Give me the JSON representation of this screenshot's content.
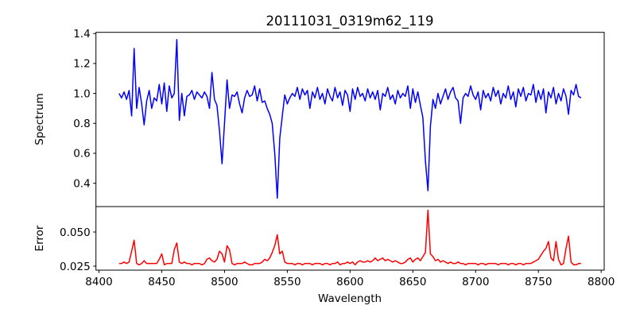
{
  "chart_data": [
    {
      "type": "line",
      "title": "20111031_0319m62_119",
      "xlabel": "",
      "ylabel": "Spectrum",
      "xlim": [
        8397.6,
        8802.4
      ],
      "ylim": [
        0.244,
        1.408
      ],
      "yticks": [
        "0.4",
        "0.6",
        "0.8",
        "1.0",
        "1.2",
        "1.4"
      ],
      "ytick_values": [
        0.4,
        0.6,
        0.8,
        1.0,
        1.2,
        1.4
      ],
      "color": "#0000ff",
      "x_start": 8416,
      "x_step": 2,
      "values": [
        1.0,
        0.97,
        1.01,
        0.96,
        1.02,
        0.85,
        1.3,
        0.9,
        1.04,
        0.93,
        0.79,
        0.95,
        1.02,
        0.9,
        0.97,
        0.95,
        1.06,
        0.93,
        1.07,
        0.88,
        1.05,
        0.97,
        1.0,
        1.36,
        0.82,
        1.0,
        0.85,
        0.98,
        0.99,
        1.02,
        0.96,
        1.01,
        0.99,
        0.97,
        1.01,
        0.98,
        0.9,
        1.14,
        0.96,
        0.92,
        0.75,
        0.53,
        0.8,
        1.09,
        0.9,
        0.99,
        0.98,
        1.01,
        0.93,
        0.87,
        0.97,
        1.02,
        0.98,
        0.99,
        1.05,
        0.95,
        1.03,
        0.94,
        0.95,
        0.9,
        0.86,
        0.8,
        0.6,
        0.3,
        0.7,
        0.85,
        0.99,
        0.93,
        0.97,
        1.0,
        0.98,
        1.04,
        0.96,
        1.03,
        0.99,
        1.02,
        0.9,
        1.01,
        0.97,
        1.04,
        0.96,
        1.0,
        0.93,
        1.03,
        0.98,
        0.95,
        1.04,
        0.97,
        1.01,
        0.92,
        1.02,
        0.99,
        0.88,
        1.03,
        0.96,
        1.04,
        0.98,
        1.0,
        0.95,
        1.03,
        0.97,
        1.01,
        0.96,
        1.02,
        0.89,
        1.0,
        0.98,
        1.04,
        0.96,
        0.99,
        0.93,
        1.02,
        0.97,
        1.0,
        0.98,
        1.05,
        0.9,
        1.03,
        0.94,
        1.01,
        0.92,
        0.84,
        0.55,
        0.35,
        0.78,
        0.96,
        0.9,
        1.0,
        0.93,
        0.98,
        1.03,
        0.96,
        1.01,
        1.04,
        0.97,
        0.95,
        0.8,
        0.97,
        1.0,
        0.98,
        1.05,
        0.99,
        0.96,
        1.01,
        0.89,
        1.02,
        0.97,
        1.0,
        0.95,
        1.04,
        0.98,
        1.02,
        0.93,
        1.0,
        0.97,
        1.05,
        0.96,
        1.01,
        0.91,
        1.03,
        0.98,
        1.04,
        0.95,
        1.0,
        0.99,
        1.06,
        0.94,
        1.02,
        0.96,
        1.03,
        0.87,
        1.01,
        0.97,
        1.04,
        0.93,
        1.0,
        0.95,
        1.03,
        0.98,
        0.86,
        1.02,
        0.99,
        1.06,
        0.98,
        0.97
      ]
    },
    {
      "type": "line",
      "title": "",
      "xlabel": "Wavelength",
      "ylabel": "Error",
      "xlim": [
        8397.6,
        8802.4
      ],
      "ylim": [
        0.0221,
        0.0686
      ],
      "xticks": [
        "8400",
        "8450",
        "8500",
        "8550",
        "8600",
        "8650",
        "8700",
        "8750",
        "8800"
      ],
      "xtick_values": [
        8400,
        8450,
        8500,
        8550,
        8600,
        8650,
        8700,
        8750,
        8800
      ],
      "yticks": [
        "0.025",
        "0.050"
      ],
      "ytick_values": [
        0.025,
        0.05
      ],
      "color": "#ff0000",
      "x_start": 8416,
      "x_step": 2,
      "values": [
        0.027,
        0.027,
        0.028,
        0.027,
        0.028,
        0.036,
        0.044,
        0.027,
        0.026,
        0.027,
        0.029,
        0.027,
        0.027,
        0.027,
        0.027,
        0.027,
        0.03,
        0.034,
        0.026,
        0.027,
        0.027,
        0.027,
        0.037,
        0.042,
        0.028,
        0.027,
        0.028,
        0.027,
        0.027,
        0.026,
        0.027,
        0.027,
        0.027,
        0.026,
        0.027,
        0.03,
        0.031,
        0.029,
        0.028,
        0.03,
        0.036,
        0.034,
        0.028,
        0.04,
        0.037,
        0.027,
        0.026,
        0.027,
        0.027,
        0.027,
        0.028,
        0.027,
        0.026,
        0.026,
        0.027,
        0.027,
        0.027,
        0.028,
        0.03,
        0.029,
        0.031,
        0.035,
        0.04,
        0.048,
        0.034,
        0.036,
        0.028,
        0.027,
        0.027,
        0.027,
        0.026,
        0.027,
        0.027,
        0.026,
        0.027,
        0.027,
        0.027,
        0.026,
        0.027,
        0.027,
        0.027,
        0.026,
        0.027,
        0.027,
        0.026,
        0.027,
        0.027,
        0.028,
        0.026,
        0.027,
        0.027,
        0.028,
        0.027,
        0.028,
        0.026,
        0.028,
        0.029,
        0.028,
        0.028,
        0.029,
        0.028,
        0.029,
        0.031,
        0.029,
        0.03,
        0.031,
        0.029,
        0.03,
        0.029,
        0.028,
        0.029,
        0.028,
        0.027,
        0.027,
        0.028,
        0.03,
        0.031,
        0.028,
        0.03,
        0.031,
        0.029,
        0.032,
        0.035,
        0.066,
        0.034,
        0.032,
        0.029,
        0.03,
        0.028,
        0.029,
        0.028,
        0.027,
        0.028,
        0.027,
        0.027,
        0.028,
        0.027,
        0.027,
        0.026,
        0.027,
        0.027,
        0.027,
        0.027,
        0.026,
        0.027,
        0.027,
        0.026,
        0.027,
        0.027,
        0.027,
        0.027,
        0.026,
        0.027,
        0.027,
        0.027,
        0.026,
        0.027,
        0.027,
        0.026,
        0.027,
        0.027,
        0.026,
        0.027,
        0.027,
        0.027,
        0.028,
        0.029,
        0.03,
        0.033,
        0.036,
        0.038,
        0.043,
        0.031,
        0.029,
        0.043,
        0.03,
        0.026,
        0.027,
        0.038,
        0.047,
        0.028,
        0.026,
        0.026,
        0.027,
        0.027
      ]
    }
  ]
}
